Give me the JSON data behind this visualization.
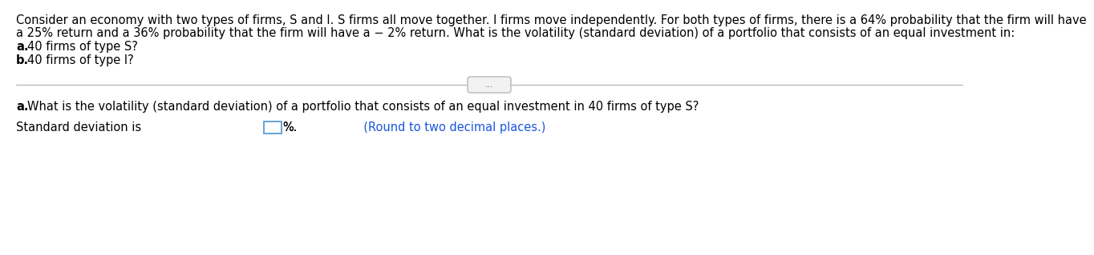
{
  "background_color": "#ffffff",
  "paragraph1": "Consider an economy with two types of firms, S and I. S firms all move together. I firms move independently. For both types of firms, there is a 64% probability that the firm will have",
  "paragraph2": "a 25% return and a 36% probability that the firm will have a − 2% return. What is the volatility (standard deviation) of a portfolio that consists of an equal investment in:",
  "item_a_bold": "a.",
  "item_a_rest": " 40 firms of type S?",
  "item_b_bold": "b.",
  "item_b_rest": " 40 firms of type I?",
  "divider_label": "...",
  "question_a_bold": "a.",
  "question_a_rest": " What is the volatility (standard deviation) of a portfolio that consists of an equal investment in 40 firms of type S?",
  "answer_prefix": "Standard deviation is ",
  "answer_suffix_black": "%.",
  "answer_suffix_blue": "  (Round to two decimal places.)",
  "text_color": "#000000",
  "blue_text_color": "#1a56db",
  "box_border_color": "#5b9bd5",
  "font_size_main": 10.5
}
